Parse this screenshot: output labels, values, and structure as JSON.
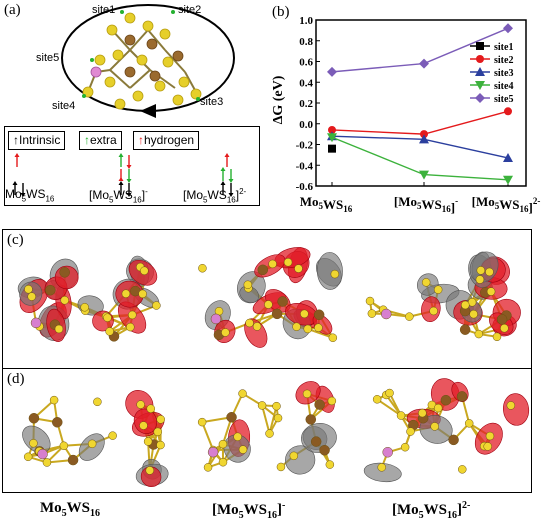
{
  "panel_a": {
    "label": "(a)",
    "sites": [
      "site1",
      "site2",
      "site3",
      "site4",
      "site5"
    ],
    "legend": {
      "intrinsic": "Intrinsic",
      "extra": "extra",
      "hydrogen": "hydrogen"
    },
    "cluster_labels": [
      {
        "base": "Mo",
        "sub1": "5",
        "mid": "WS",
        "sub2": "16",
        "sup": ""
      },
      {
        "base": "[Mo",
        "sub1": "5",
        "mid": "WS",
        "sub2": "16",
        "close": "]",
        "sup": "-"
      },
      {
        "base": "[Mo",
        "sub1": "5",
        "mid": "WS",
        "sub2": "16",
        "close": "]",
        "sup": "2-"
      }
    ]
  },
  "panel_b": {
    "label": "(b)"
  },
  "panel_c": {
    "label": "(c)"
  },
  "panel_d": {
    "label": "(d)"
  },
  "bottom_labels": [
    {
      "base": "Mo",
      "sub1": "5",
      "mid": "WS",
      "sub2": "16",
      "close": "",
      "sup": ""
    },
    {
      "base": "[Mo",
      "sub1": "5",
      "mid": "WS",
      "sub2": "16",
      "close": "]",
      "sup": "-"
    },
    {
      "base": "[Mo",
      "sub1": "5",
      "mid": "WS",
      "sub2": "16",
      "close": "]",
      "sup": "2-"
    }
  ],
  "chart_data": {
    "type": "line",
    "categories": [
      "Mo5WS16",
      "[Mo5WS16]-",
      "[Mo5WS16]2-"
    ],
    "ylabel": "ΔG (eV)",
    "xlabel": "",
    "ylim": [
      -0.6,
      1.0
    ],
    "yticks": [
      "1.0",
      "0.8",
      "0.6",
      "0.4",
      "0.2",
      "0.0",
      "-0.2",
      "-0.4",
      "-0.6"
    ],
    "legend_position": "right",
    "series": [
      {
        "name": "site1",
        "color": "#000000",
        "marker": "square",
        "values": [
          -0.24,
          null,
          null
        ]
      },
      {
        "name": "site2",
        "color": "#e41a1c",
        "marker": "circle",
        "values": [
          -0.06,
          -0.1,
          0.12
        ]
      },
      {
        "name": "site3",
        "color": "#2b3f9e",
        "marker": "triangle-up",
        "values": [
          -0.12,
          -0.15,
          -0.33
        ]
      },
      {
        "name": "site4",
        "color": "#3cb23c",
        "marker": "triangle-down",
        "values": [
          -0.13,
          -0.49,
          -0.54
        ]
      },
      {
        "name": "site5",
        "color": "#7b5cb8",
        "marker": "diamond",
        "values": [
          0.5,
          0.58,
          0.92
        ]
      }
    ]
  }
}
